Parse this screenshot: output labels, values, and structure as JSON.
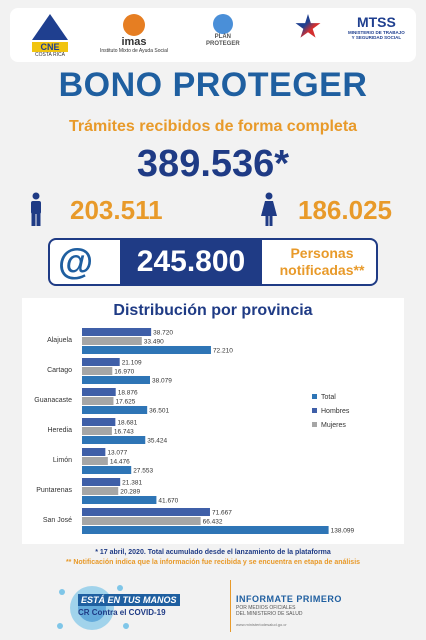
{
  "logos": {
    "cne": {
      "name": "CNE",
      "sub": "COSTA RICA"
    },
    "imas": {
      "name": "imas",
      "sub": "Instituto Mixto de Ayuda Social"
    },
    "plan": {
      "line1": "PLAN",
      "line2": "PROTEGER"
    },
    "mtss": {
      "name": "MTSS",
      "sub1": "MINISTERIO DE TRABAJO",
      "sub2": "Y SEGURIDAD SOCIAL"
    }
  },
  "header": {
    "title": "BONO PROTEGER",
    "subtitle": "Trámites recibidos de forma completa",
    "total": "389.536*"
  },
  "gender": {
    "men": "203.511",
    "women": "186.025"
  },
  "notifications": {
    "count": "245.800",
    "label_line1": "Personas",
    "label_line2": "notificadas**"
  },
  "icons": {
    "man": "man-icon",
    "woman": "woman-icon",
    "at": "at-sign-icon",
    "virus": "coronavirus-icon"
  },
  "colors": {
    "total": "#2e75b6",
    "hombres": "#3f5fa8",
    "mujeres": "#a6a6a6",
    "accent": "#e89a2a",
    "navy": "#1f3b85"
  },
  "chart_data": {
    "type": "bar",
    "orientation": "horizontal",
    "title": "Distribución por provincia",
    "categories": [
      "Alajuela",
      "Cartago",
      "Guanacaste",
      "Heredia",
      "Limón",
      "Puntarenas",
      "San José"
    ],
    "series": [
      {
        "name": "Hombres",
        "values": [
          38720,
          21109,
          18876,
          18681,
          13077,
          21381,
          71667
        ],
        "labels": [
          "38.720",
          "21.109",
          "18.876",
          "18.681",
          "13.077",
          "21.381",
          "71.667"
        ]
      },
      {
        "name": "Mujeres",
        "values": [
          33490,
          16970,
          17625,
          16743,
          14476,
          20289,
          66432
        ],
        "labels": [
          "33.490",
          "16.970",
          "17.625",
          "16.743",
          "14.476",
          "20.289",
          "66.432"
        ]
      },
      {
        "name": "Total",
        "values": [
          72210,
          38079,
          36501,
          35424,
          27553,
          41670,
          138099
        ],
        "labels": [
          "72.210",
          "38.079",
          "36.501",
          "35.424",
          "27.553",
          "41.670",
          "138.099"
        ]
      }
    ],
    "legend_order": [
      "Total",
      "Hombres",
      "Mujeres"
    ],
    "legend_position": "right"
  },
  "footer": {
    "note1": "* 17 abril, 2020. Total acumulado desde el lanzamiento de la plataforma",
    "note2": "** Notificación indica que la información fue recibida y se encuentra en etapa de análisis",
    "campaign1": "ESTÁ EN TUS MANOS",
    "campaign2": "CR Contra el COVID-19",
    "informate": "INFORMATE PRIMERO",
    "informate_sub1": "POR MEDIOS OFICIALES",
    "informate_sub2": "DEL MINISTERIO DE SALUD",
    "website": "www.ministeriodesalud.go.cr"
  }
}
